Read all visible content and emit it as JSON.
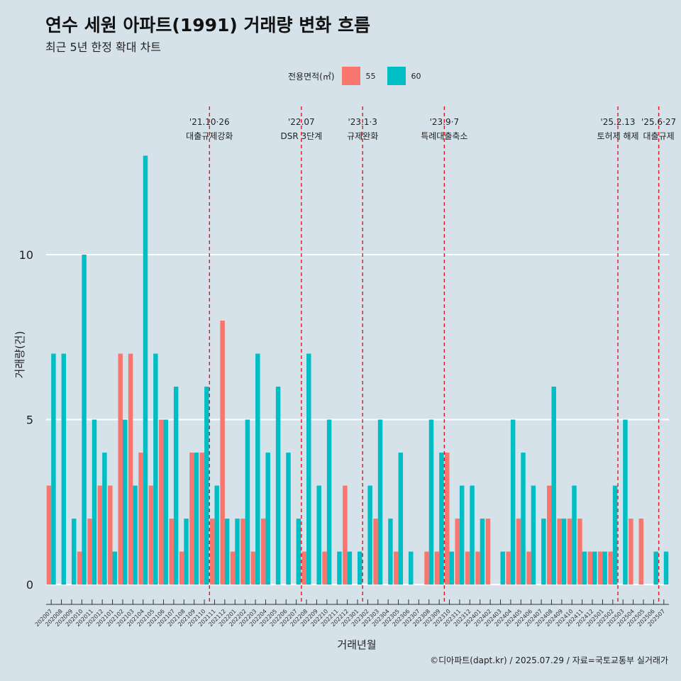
{
  "title": "연수 세원 아파트(1991) 거래량 변화 흐름",
  "subtitle": "최근 5년 한정 확대 차트",
  "caption": "©디아파트(dapt.kr) / 2025.07.29 / 자료=국토교통부 실거래가",
  "legend": {
    "title": "전용면적(㎡)",
    "items": [
      {
        "label": "55",
        "color": "#f8766d"
      },
      {
        "label": "60",
        "color": "#00bfc4"
      }
    ]
  },
  "chart_data": {
    "type": "bar",
    "title": "연수 세원 아파트(1991) 거래량 변화 흐름",
    "xlabel": "거래년월",
    "ylabel": "거래량(건)",
    "ylim": [
      -0.6,
      14.6
    ],
    "yticks": [
      0,
      5,
      10
    ],
    "categories": [
      "202007",
      "202008",
      "202009",
      "202010",
      "202011",
      "202012",
      "202101",
      "202102",
      "202103",
      "202104",
      "202105",
      "202106",
      "202107",
      "202108",
      "202109",
      "202110",
      "202111",
      "202112",
      "202201",
      "202202",
      "202203",
      "202204",
      "202205",
      "202206",
      "202207",
      "202208",
      "202209",
      "202210",
      "202211",
      "202212",
      "202301",
      "202302",
      "202303",
      "202304",
      "202305",
      "202306",
      "202307",
      "202308",
      "202309",
      "202310",
      "202311",
      "202312",
      "202401",
      "202402",
      "202403",
      "202404",
      "202405",
      "202406",
      "202407",
      "202408",
      "202409",
      "202410",
      "202411",
      "202412",
      "202501",
      "202502",
      "202503",
      "202504",
      "202505",
      "202506",
      "202507"
    ],
    "series": [
      {
        "name": "55",
        "color": "#f8766d",
        "values": [
          3,
          0,
          0,
          1,
          2,
          3,
          3,
          7,
          7,
          4,
          3,
          5,
          2,
          1,
          4,
          4,
          2,
          8,
          1,
          2,
          1,
          2,
          0,
          0,
          0,
          1,
          0,
          1,
          0,
          3,
          0,
          0,
          2,
          0,
          1,
          0,
          0,
          1,
          1,
          4,
          2,
          1,
          1,
          2,
          0,
          1,
          2,
          1,
          0,
          3,
          2,
          2,
          2,
          1,
          1,
          1,
          0,
          2,
          2,
          0,
          0
        ]
      },
      {
        "name": "60",
        "color": "#00bfc4",
        "values": [
          7,
          7,
          2,
          10,
          5,
          4,
          1,
          5,
          3,
          13,
          7,
          5,
          6,
          2,
          4,
          6,
          3,
          2,
          2,
          5,
          7,
          4,
          6,
          4,
          2,
          7,
          3,
          5,
          1,
          1,
          1,
          3,
          5,
          2,
          4,
          1,
          0,
          5,
          4,
          1,
          3,
          3,
          2,
          0,
          1,
          5,
          4,
          3,
          2,
          6,
          2,
          3,
          1,
          1,
          1,
          3,
          5,
          0,
          0,
          1,
          1
        ]
      }
    ],
    "events": [
      {
        "after": "202110",
        "line1": "'21.10·26",
        "line2": "대출규제강화"
      },
      {
        "after": "202207",
        "line1": "'22.07",
        "line2": "DSR 3단계"
      },
      {
        "after": "202301",
        "line1": "'23.1·3",
        "line2": "규제완화"
      },
      {
        "after": "202309",
        "line1": "'23.9·7",
        "line2": "특례대출축소"
      },
      {
        "after": "202502",
        "line1": "'25.2.13",
        "line2": "토허제 해제"
      },
      {
        "after": "202506",
        "line1": "'25.6·27",
        "line2": "대출규제"
      }
    ]
  }
}
